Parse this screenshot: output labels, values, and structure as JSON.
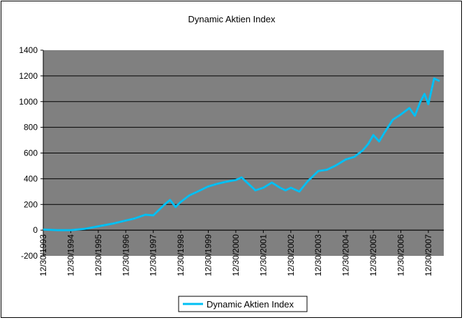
{
  "chart_data": {
    "type": "line",
    "title": "Dynamic Aktien Index",
    "xlabel": "",
    "ylabel": "",
    "ylim": [
      -200,
      1400
    ],
    "y_ticks": [
      "-200",
      "0",
      "200",
      "400",
      "600",
      "800",
      "1000",
      "1200",
      "1400"
    ],
    "x_ticks": [
      "12/30/1993",
      "12/30/1994",
      "12/30/1995",
      "12/30/1996",
      "12/30/1997",
      "12/30/1998",
      "12/30/1999",
      "12/30/2000",
      "12/30/2001",
      "12/30/2002",
      "12/30/2003",
      "12/30/2004",
      "12/30/2005",
      "12/30/2006",
      "12/30/2007"
    ],
    "grid": true,
    "plot_background": "#808080",
    "legend_position": "bottom",
    "series": [
      {
        "name": "Dynamic Aktien Index",
        "color": "#00BFF3",
        "x": [
          1993.99,
          1994.5,
          1994.99,
          1995.5,
          1995.99,
          1996.5,
          1996.99,
          1997.3,
          1997.7,
          1997.99,
          1998.4,
          1998.6,
          1998.8,
          1998.99,
          1999.3,
          1999.6,
          1999.99,
          2000.3,
          2000.6,
          2000.99,
          2001.2,
          2001.5,
          2001.7,
          2001.99,
          2002.3,
          2002.6,
          2002.8,
          2002.99,
          2003.3,
          2003.6,
          2003.99,
          2004.3,
          2004.6,
          2004.99,
          2005.3,
          2005.6,
          2005.8,
          2005.99,
          2006.2,
          2006.4,
          2006.7,
          2006.99,
          2007.3,
          2007.5,
          2007.7,
          2007.85,
          2007.99,
          2008.2,
          2008.4
        ],
        "y": [
          5,
          0,
          0,
          10,
          30,
          50,
          75,
          90,
          120,
          115,
          200,
          235,
          180,
          220,
          270,
          300,
          340,
          360,
          375,
          390,
          410,
          350,
          310,
          330,
          370,
          330,
          310,
          330,
          300,
          380,
          460,
          470,
          500,
          550,
          570,
          620,
          670,
          740,
          690,
          760,
          860,
          900,
          950,
          890,
          1000,
          1060,
          980,
          1180,
          1160
        ]
      }
    ]
  }
}
